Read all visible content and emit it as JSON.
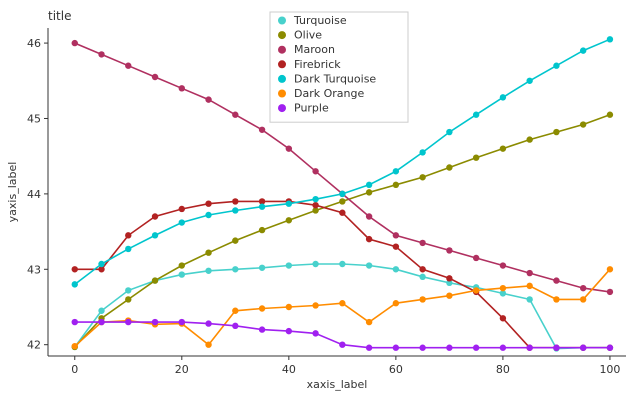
{
  "chart_data": {
    "type": "line",
    "title": "title",
    "xlabel": "xaxis_label",
    "ylabel": "yaxis_label",
    "xlim": [
      -5,
      103
    ],
    "ylim": [
      41.85,
      46.2
    ],
    "xticks": [
      0,
      20,
      40,
      60,
      80,
      100
    ],
    "yticks": [
      42,
      43,
      44,
      45,
      46
    ],
    "legend_position": "top-right",
    "grid": false,
    "series": [
      {
        "name": "Turquoise",
        "color": "#48d1cc",
        "x": [
          0,
          5,
          10,
          15,
          20,
          25,
          30,
          35,
          40,
          45,
          50,
          55,
          60,
          65,
          70,
          75,
          80,
          85,
          90,
          95,
          100
        ],
        "y": [
          41.97,
          42.45,
          42.72,
          42.85,
          42.93,
          42.98,
          43.0,
          43.02,
          43.05,
          43.07,
          43.07,
          43.05,
          43.0,
          42.9,
          42.82,
          42.76,
          42.68,
          42.6,
          41.95,
          41.96,
          41.96
        ]
      },
      {
        "name": "Olive",
        "color": "#8b8b00",
        "x": [
          0,
          5,
          10,
          15,
          20,
          25,
          30,
          35,
          40,
          45,
          50,
          55,
          60,
          65,
          70,
          75,
          80,
          85,
          90,
          95,
          100
        ],
        "y": [
          41.97,
          42.35,
          42.6,
          42.85,
          43.05,
          43.22,
          43.38,
          43.52,
          43.65,
          43.78,
          43.9,
          44.02,
          44.12,
          44.22,
          44.35,
          44.48,
          44.6,
          44.72,
          44.82,
          44.92,
          45.05
        ]
      },
      {
        "name": "Maroon",
        "color": "#b03060",
        "x": [
          0,
          5,
          10,
          15,
          20,
          25,
          30,
          35,
          40,
          45,
          50,
          55,
          60,
          65,
          70,
          75,
          80,
          85,
          90,
          95,
          100
        ],
        "y": [
          46.0,
          45.85,
          45.7,
          45.55,
          45.4,
          45.25,
          45.05,
          44.85,
          44.6,
          44.3,
          44.0,
          43.7,
          43.45,
          43.35,
          43.25,
          43.15,
          43.05,
          42.95,
          42.85,
          42.75,
          42.7
        ]
      },
      {
        "name": "Firebrick",
        "color": "#b22222",
        "x": [
          0,
          5,
          10,
          15,
          20,
          25,
          30,
          35,
          40,
          45,
          50,
          55,
          60,
          65,
          70,
          75,
          80,
          85,
          90,
          95,
          100
        ],
        "y": [
          43.0,
          43.0,
          43.45,
          43.7,
          43.8,
          43.87,
          43.9,
          43.9,
          43.9,
          43.85,
          43.75,
          43.4,
          43.3,
          43.0,
          42.88,
          42.7,
          42.35,
          41.96,
          41.96,
          41.96,
          41.96
        ]
      },
      {
        "name": "Dark Turquoise",
        "color": "#00c5cd",
        "x": [
          0,
          5,
          10,
          15,
          20,
          25,
          30,
          35,
          40,
          45,
          50,
          55,
          60,
          65,
          70,
          75,
          80,
          85,
          90,
          95,
          100
        ],
        "y": [
          42.8,
          43.07,
          43.27,
          43.45,
          43.62,
          43.72,
          43.78,
          43.83,
          43.87,
          43.93,
          44.0,
          44.12,
          44.3,
          44.55,
          44.82,
          45.05,
          45.28,
          45.5,
          45.7,
          45.9,
          46.05
        ]
      },
      {
        "name": "Dark Orange",
        "color": "#ff8c00",
        "x": [
          0,
          5,
          10,
          15,
          20,
          25,
          30,
          35,
          40,
          45,
          50,
          55,
          60,
          65,
          70,
          75,
          80,
          85,
          90,
          95,
          100
        ],
        "y": [
          41.98,
          42.3,
          42.32,
          42.27,
          42.28,
          42.0,
          42.45,
          42.48,
          42.5,
          42.52,
          42.55,
          42.3,
          42.55,
          42.6,
          42.65,
          42.72,
          42.75,
          42.78,
          42.6,
          42.6,
          43.0
        ]
      },
      {
        "name": "Purple",
        "color": "#a020f0",
        "x": [
          0,
          5,
          10,
          15,
          20,
          25,
          30,
          35,
          40,
          45,
          50,
          55,
          60,
          65,
          70,
          75,
          80,
          85,
          90,
          95,
          100
        ],
        "y": [
          42.3,
          42.3,
          42.3,
          42.3,
          42.3,
          42.28,
          42.25,
          42.2,
          42.18,
          42.15,
          42.0,
          41.96,
          41.96,
          41.96,
          41.96,
          41.96,
          41.96,
          41.96,
          41.96,
          41.96,
          41.96
        ]
      }
    ]
  }
}
